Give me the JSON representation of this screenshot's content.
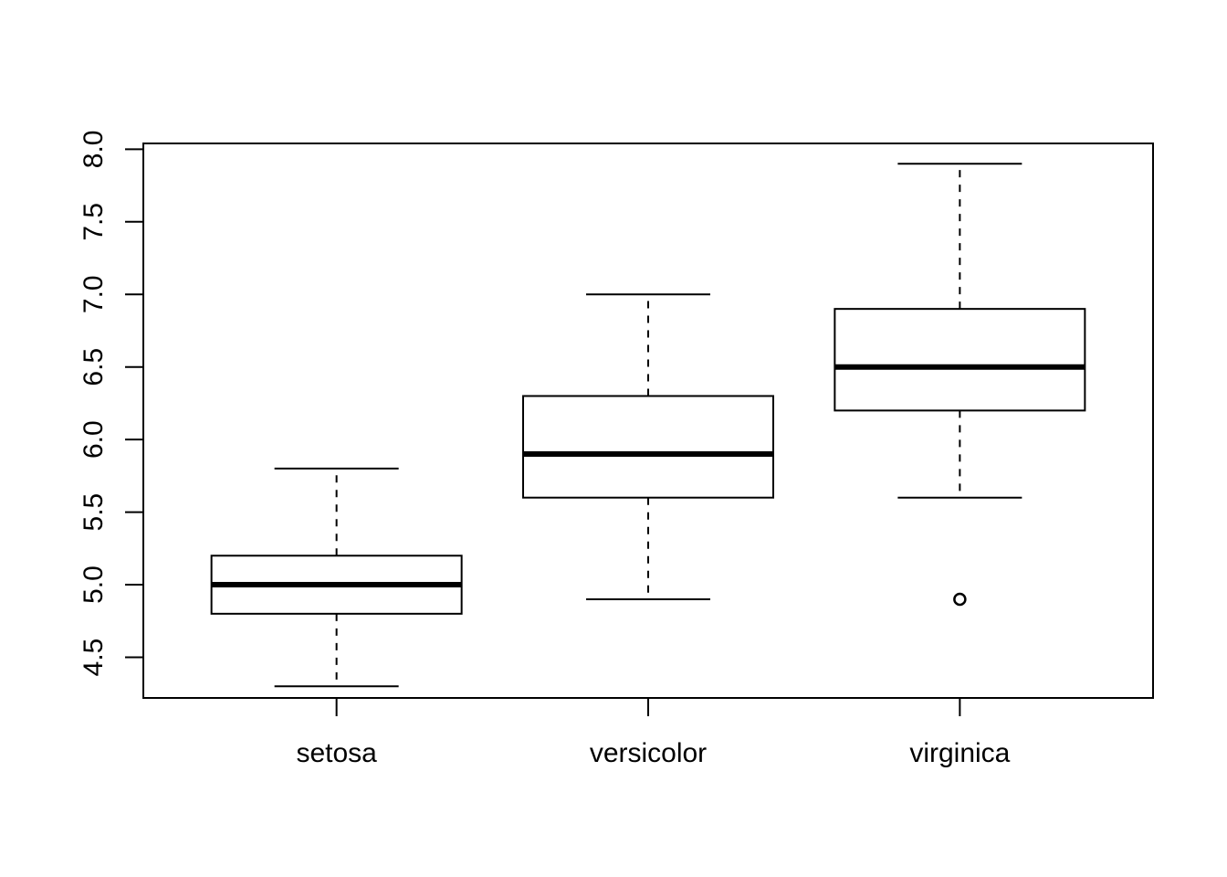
{
  "chart_data": {
    "type": "boxplot",
    "title": "",
    "xlabel": "",
    "ylabel": "",
    "ylim": [
      4.22,
      8.04
    ],
    "yticks": [
      4.5,
      5.0,
      5.5,
      6.0,
      6.5,
      7.0,
      7.5,
      8.0
    ],
    "ytick_labels": [
      "4.5",
      "5.0",
      "5.5",
      "6.0",
      "6.5",
      "7.0",
      "7.5",
      "8.0"
    ],
    "grid": false,
    "legend": "none",
    "categories": [
      "setosa",
      "versicolor",
      "virginica"
    ],
    "boxes": [
      {
        "category": "setosa",
        "whisker_low": 4.3,
        "q1": 4.8,
        "median": 5.0,
        "q3": 5.2,
        "whisker_high": 5.8,
        "outliers": []
      },
      {
        "category": "versicolor",
        "whisker_low": 4.9,
        "q1": 5.6,
        "median": 5.9,
        "q3": 6.3,
        "whisker_high": 7.0,
        "outliers": []
      },
      {
        "category": "virginica",
        "whisker_low": 5.6,
        "q1": 6.2,
        "median": 6.5,
        "q3": 6.9,
        "whisker_high": 7.9,
        "outliers": [
          4.9
        ]
      }
    ],
    "colors": {
      "line": "#000000",
      "fill": "#ffffff"
    }
  }
}
